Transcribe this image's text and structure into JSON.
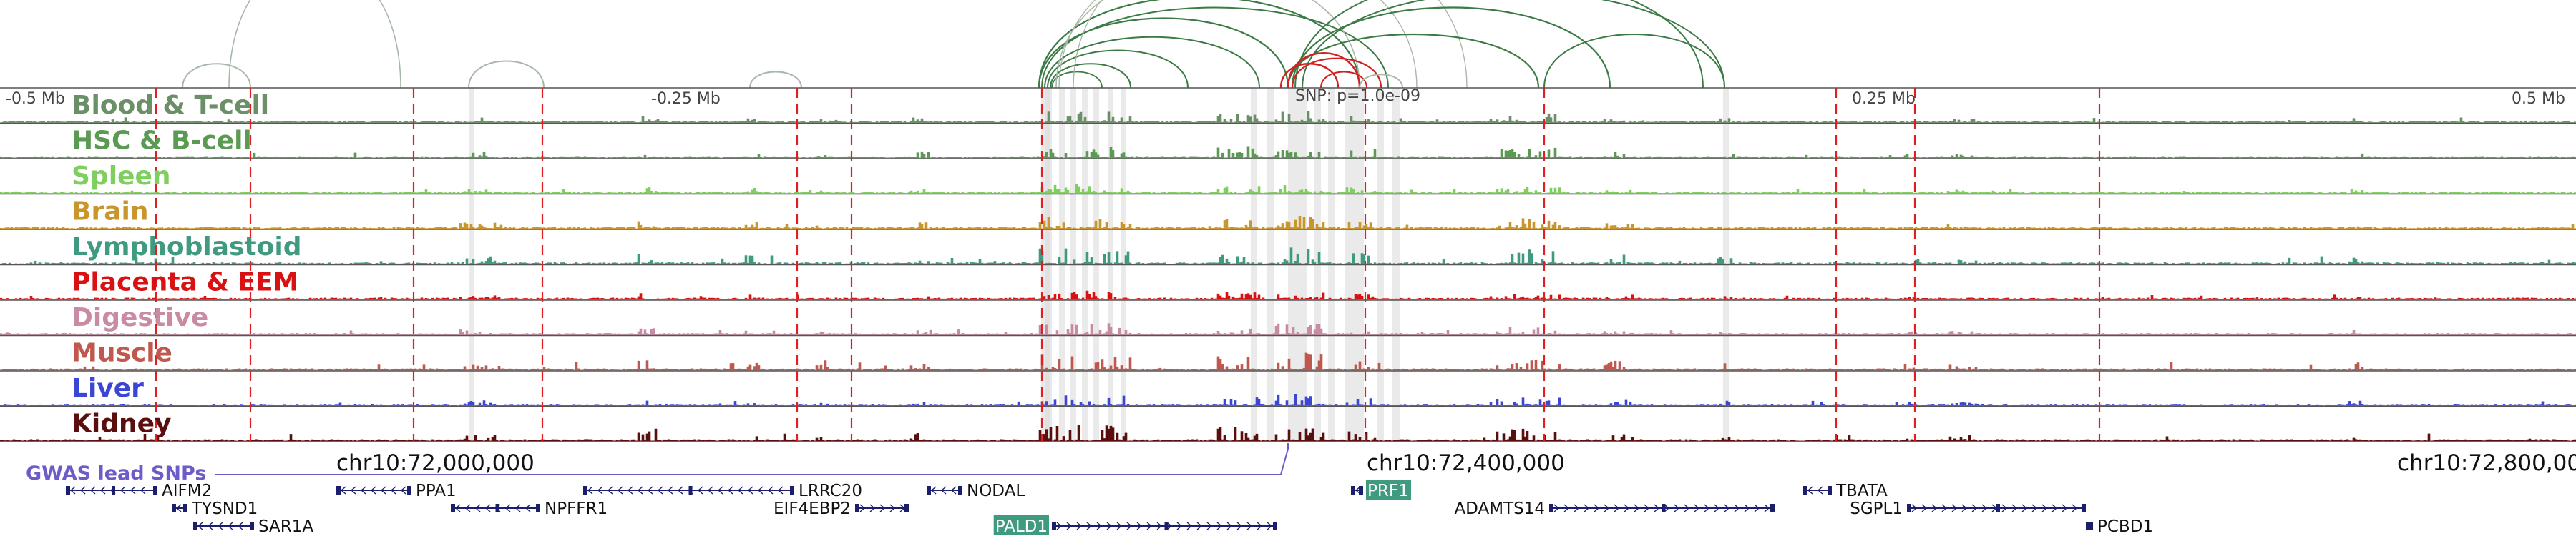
{
  "tracks": [
    {
      "label": "Blood & T-cell",
      "color": "#6b8f66"
    },
    {
      "label": "HSC & B-cell",
      "color": "#5a9a52"
    },
    {
      "label": "Spleen",
      "color": "#7fcf5f"
    },
    {
      "label": "Brain",
      "color": "#c8962c"
    },
    {
      "label": "Lymphoblastoid",
      "color": "#3f9a80"
    },
    {
      "label": "Placenta & EEM",
      "color": "#d81212"
    },
    {
      "label": "Digestive",
      "color": "#c98aa4"
    },
    {
      "label": "Muscle",
      "color": "#c0584e"
    },
    {
      "label": "Liver",
      "color": "#3c46d6"
    },
    {
      "label": "Kidney",
      "color": "#5a0e0e"
    }
  ],
  "ruler": {
    "offsets": [
      {
        "label": "-0.5 Mb"
      },
      {
        "label": "-0.25 Mb"
      },
      {
        "label": "0.25 Mb"
      },
      {
        "label": "0.5 Mb"
      }
    ],
    "snp_label": "SNP: p=1.0e-09"
  },
  "coords": {
    "ticks": [
      {
        "label": "chr10:72,000,000",
        "pos": 72000000
      },
      {
        "label": "chr10:72,400,000",
        "pos": 72400000
      },
      {
        "label": "chr10:72,800,000",
        "pos": 72800000
      }
    ]
  },
  "gwas": {
    "label": "GWAS lead SNPs",
    "color": "#6b5cc8"
  },
  "genes": [
    {
      "name": "AIFM2",
      "strand": "-",
      "label_side": "right",
      "highlight": false
    },
    {
      "name": "TYSND1",
      "strand": "-",
      "label_side": "right",
      "highlight": false
    },
    {
      "name": "SAR1A",
      "strand": "-",
      "label_side": "right",
      "highlight": false
    },
    {
      "name": "PPA1",
      "strand": "-",
      "label_side": "right",
      "highlight": false
    },
    {
      "name": "NPFFR1",
      "strand": "-",
      "label_side": "right",
      "highlight": false
    },
    {
      "name": "LRRC20",
      "strand": "-",
      "label_side": "right",
      "highlight": false
    },
    {
      "name": "EIF4EBP2",
      "strand": "+",
      "label_side": "left",
      "highlight": false
    },
    {
      "name": "NODAL",
      "strand": "-",
      "label_side": "right",
      "highlight": false
    },
    {
      "name": "PALD1",
      "strand": "+",
      "label_side": "left",
      "highlight": true
    },
    {
      "name": "PRF1",
      "strand": "-",
      "label_side": "right",
      "highlight": true
    },
    {
      "name": "ADAMTS14",
      "strand": "+",
      "label_side": "left",
      "highlight": false
    },
    {
      "name": "TBATA",
      "strand": "-",
      "label_side": "right",
      "highlight": false
    },
    {
      "name": "SGPL1",
      "strand": "+",
      "label_side": "left",
      "highlight": false
    },
    {
      "name": "PCBD1",
      "strand": "-",
      "label_side": "right",
      "highlight": false
    }
  ],
  "colors": {
    "arc_primary": "#3c7a46",
    "arc_secondary": "#a8b8a8",
    "arc_lead": "#d02020",
    "red_dashed": "#e02020",
    "highlight_gene": "#3f9a80",
    "gene_body": "#1b1f6b",
    "shade": "#d8d8d8"
  }
}
